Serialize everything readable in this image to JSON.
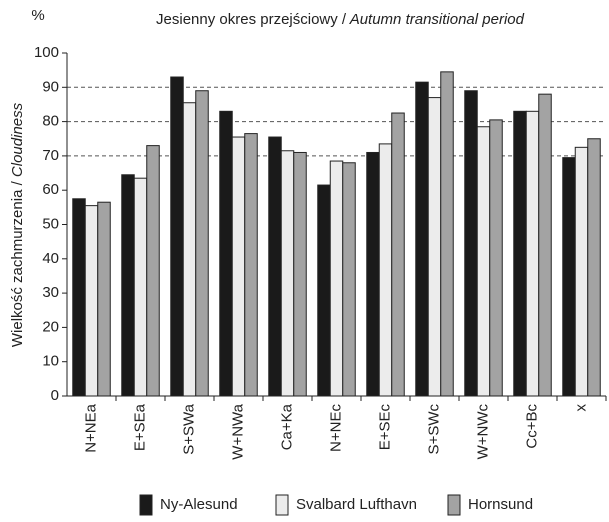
{
  "chart_data": {
    "type": "bar",
    "title": "Jesienny okres przejściowy / Autumn transitional period",
    "y_unit": "%",
    "y_label": "Wielkość zachmurzenia / Cloudiness",
    "categories": [
      "N+NEa",
      "E+SEa",
      "S+SWa",
      "W+NWa",
      "Ca+Ka",
      "N+NEc",
      "E+SEc",
      "S+SWc",
      "W+NWc",
      "Cc+Bc",
      "x"
    ],
    "series": [
      {
        "name": "Ny-Alesund",
        "color": "#1a1a1a",
        "values": [
          57.5,
          64.5,
          93,
          83,
          75.5,
          61.5,
          71,
          91.5,
          89,
          83,
          69.5
        ]
      },
      {
        "name": "Svalbard Lufthavn",
        "color": "#ececec",
        "values": [
          55.5,
          63.5,
          85.5,
          75.5,
          71.5,
          68.5,
          73.5,
          87,
          78.5,
          83,
          72.5
        ]
      },
      {
        "name": "Hornsund",
        "color": "#a3a3a3",
        "values": [
          56.5,
          73,
          89,
          76.5,
          71,
          68,
          82.5,
          94.5,
          80.5,
          88,
          75
        ]
      }
    ],
    "ylim": [
      0,
      100
    ],
    "yticks": [
      0,
      10,
      20,
      30,
      40,
      50,
      60,
      70,
      80,
      90,
      100
    ],
    "gridlines": [
      70,
      80,
      90
    ],
    "legend": "bottom"
  }
}
